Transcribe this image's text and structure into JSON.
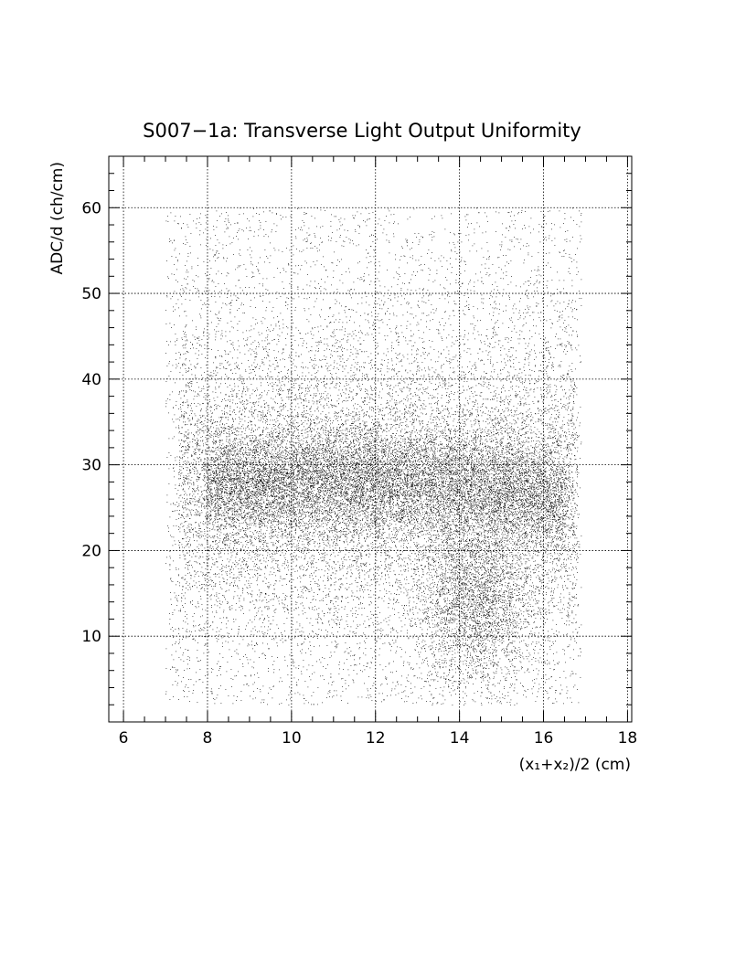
{
  "chart_data": {
    "type": "scatter",
    "title": "S007−1a: Transverse Light Output Uniformity",
    "xlabel": "(x₁+x₂)/2 (cm)",
    "ylabel": "ADC/d (ch/cm)",
    "xlim": [
      5.65,
      18.1
    ],
    "ylim": [
      0,
      66
    ],
    "xticks": [
      "6",
      "8",
      "10",
      "12",
      "14",
      "16",
      "18"
    ],
    "yticks": [
      "10",
      "20",
      "30",
      "40",
      "50",
      "60"
    ],
    "grid": true,
    "legend": "none",
    "marker_color": "#000000",
    "points_description": "about 50,000 points; x from 7.0 to 16.9 cm, y from 2 to 60 ch/cm; core density band at y = 23 to 33 between x = 8 and x = 16.5",
    "distribution": {
      "x_range": [
        7.0,
        16.9
      ],
      "y_range": [
        2,
        60
      ],
      "core_y_mean": 28,
      "core_y_sd": 3.2,
      "core_x_range": [
        8.0,
        16.5
      ]
    }
  }
}
